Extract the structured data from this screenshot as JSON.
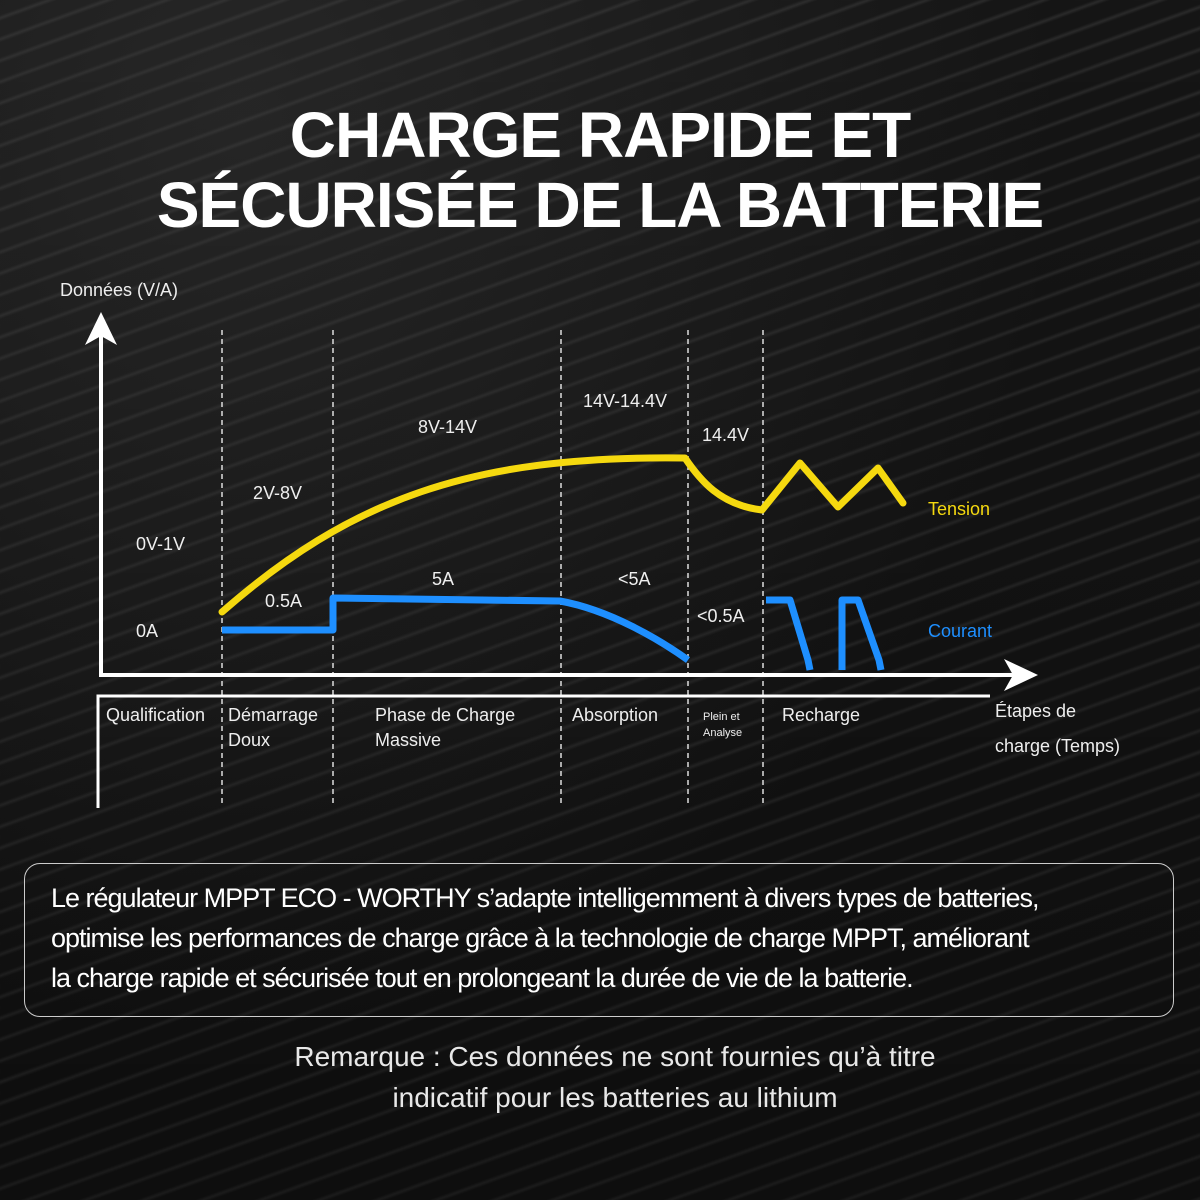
{
  "title": {
    "line1": "CHARGE RAPIDE ET",
    "line2": "SÉCURISÉE DE LA BATTERIE"
  },
  "axes": {
    "y_label": "Données (V/A)",
    "x_label_line1": "Étapes de",
    "x_label_line2": "charge (Temps)"
  },
  "voltage_labels": [
    "0V-1V",
    "2V-8V",
    "8V-14V",
    "14V-14.4V",
    "14.4V"
  ],
  "current_labels": [
    "0A",
    "0.5A",
    "5A",
    "<5A",
    "<0.5A"
  ],
  "legend": {
    "voltage": "Tension",
    "current": "Courant",
    "voltage_color": "#f5d90f",
    "current_color": "#1e8fff"
  },
  "stages": [
    {
      "line1": "Qualification",
      "line2": ""
    },
    {
      "line1": "Démarrage",
      "line2": "Doux"
    },
    {
      "line1": "Phase de Charge",
      "line2": "Massive"
    },
    {
      "line1": "Absorption",
      "line2": ""
    },
    {
      "line1": "Plein et",
      "line2": "Analyse"
    },
    {
      "line1": "Recharge",
      "line2": ""
    }
  ],
  "description": [
    "Le régulateur MPPT ECO - WORTHY s’adapte intelligemment à divers types de batteries,",
    "optimise les performances de charge grâce à la technologie de charge MPPT, améliorant",
    "la charge rapide et sécurisée tout en prolongeant la durée de vie de la batterie."
  ],
  "note": [
    "Remarque : Ces données ne sont fournies qu’à titre",
    "indicatif pour les batteries au lithium"
  ]
}
